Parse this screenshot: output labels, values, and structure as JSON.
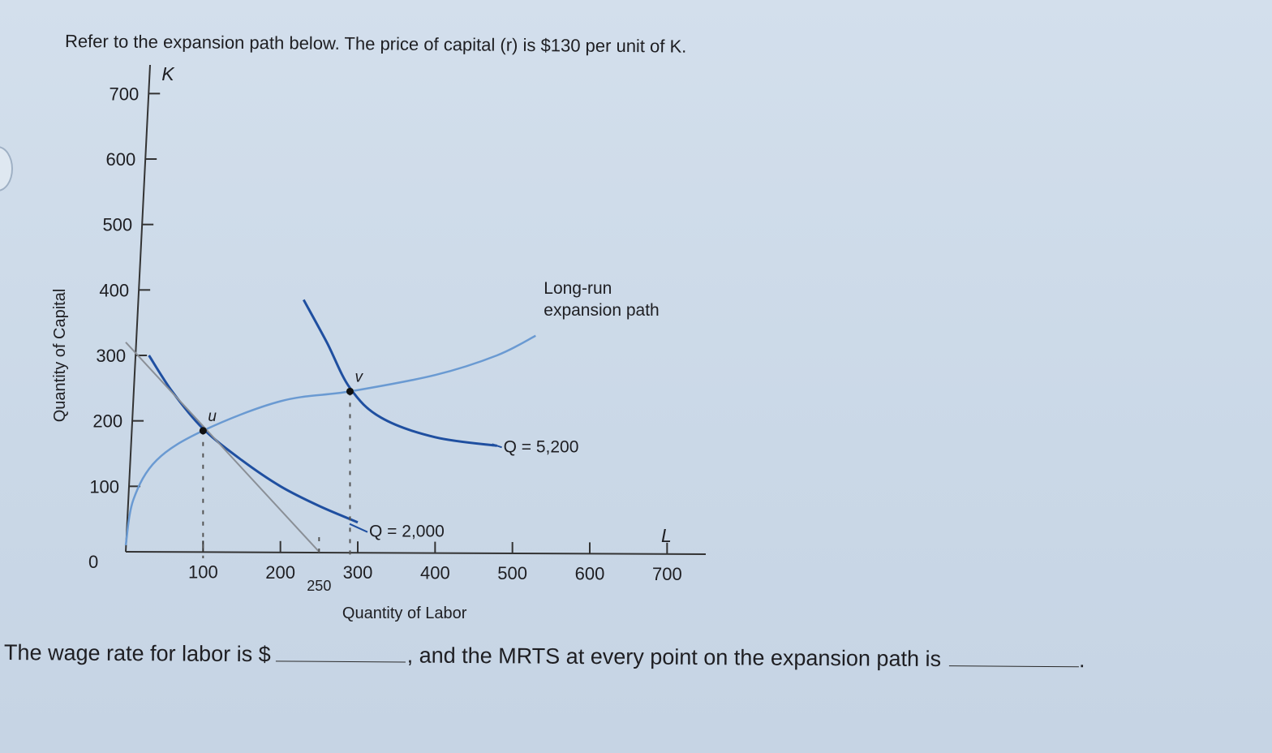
{
  "question": {
    "prompt": "Refer to the expansion path below. The price of capital (r) is $130 per unit of K.",
    "part1": "The wage rate for labor is $",
    "part2": ", and the MRTS at every point on the expansion path is",
    "part3": "."
  },
  "colors": {
    "isoquant": "#1f4fa0",
    "expansion_path": "#6a9ad2",
    "isocost": "#8a8f96",
    "axis": "#333333"
  },
  "chart_data": {
    "type": "line",
    "title": "",
    "xlabel": "Quantity of Labor",
    "ylabel": "Quantity of Capital",
    "x_var": "L",
    "y_var": "K",
    "xlim": [
      0,
      750
    ],
    "ylim": [
      0,
      750
    ],
    "x_ticks": [
      100,
      200,
      300,
      400,
      500,
      600,
      700
    ],
    "y_ticks": [
      100,
      200,
      300,
      400,
      500,
      600,
      700
    ],
    "x_ticks_text": [
      "100",
      "200",
      "300",
      "400",
      "500",
      "600",
      "700"
    ],
    "y_ticks_text": [
      "100",
      "200",
      "300",
      "400",
      "500",
      "600",
      "700"
    ],
    "origin_label": "0",
    "extra_x_label": {
      "x": 250,
      "text": "250"
    },
    "grid": false,
    "series": [
      {
        "name": "Q = 2,000",
        "kind": "isoquant",
        "points": [
          [
            30,
            300
          ],
          [
            60,
            245
          ],
          [
            100,
            188
          ],
          [
            150,
            140
          ],
          [
            200,
            100
          ],
          [
            250,
            70
          ],
          [
            300,
            45
          ]
        ]
      },
      {
        "name": "Q = 5,200",
        "kind": "isoquant",
        "points": [
          [
            230,
            385
          ],
          [
            260,
            320
          ],
          [
            290,
            250
          ],
          [
            330,
            205
          ],
          [
            400,
            175
          ],
          [
            480,
            162
          ]
        ]
      },
      {
        "name": "Long-run expansion path",
        "kind": "expansion",
        "points": [
          [
            0,
            10
          ],
          [
            10,
            80
          ],
          [
            40,
            140
          ],
          [
            100,
            185
          ],
          [
            200,
            230
          ],
          [
            290,
            245
          ],
          [
            400,
            270
          ],
          [
            480,
            300
          ],
          [
            530,
            330
          ]
        ]
      },
      {
        "kind": "isocost",
        "points": [
          [
            0,
            325
          ],
          [
            250,
            0
          ]
        ]
      }
    ],
    "points": [
      {
        "label": "u",
        "x": 100,
        "y": 185
      },
      {
        "label": "v",
        "x": 290,
        "y": 245
      }
    ],
    "dropline_x": [
      100,
      290,
      250
    ]
  }
}
